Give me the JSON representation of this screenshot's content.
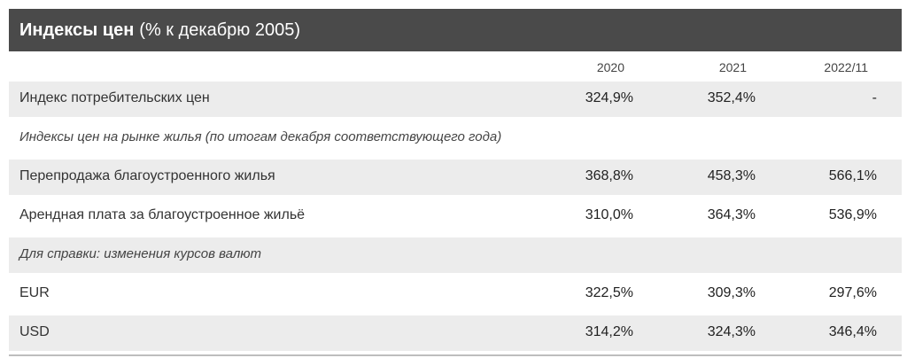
{
  "header": {
    "title_bold": "Индексы цен",
    "title_sub": "(% к декабрю 2005)"
  },
  "columns": [
    "2020",
    "2021",
    "2022/11"
  ],
  "rows": [
    {
      "label": "Индекс потребительских цен",
      "values": [
        "324,9%",
        "352,4%",
        "-"
      ]
    },
    {
      "label": "Индексы цен на рынке жилья (по итогам декабря соответствующего года)"
    },
    {
      "label": "Перепродажа благоустроенного жилья",
      "values": [
        "368,8%",
        "458,3%",
        "566,1%"
      ]
    },
    {
      "label": "Арендная плата за благоустроенное жильё",
      "values": [
        "310,0%",
        "364,3%",
        "536,9%"
      ]
    },
    {
      "label": "Для справки: изменения курсов валют"
    },
    {
      "label": "EUR",
      "values": [
        "322,5%",
        "309,3%",
        "297,6%"
      ]
    },
    {
      "label": "USD",
      "values": [
        "314,2%",
        "324,3%",
        "346,4%"
      ]
    }
  ]
}
